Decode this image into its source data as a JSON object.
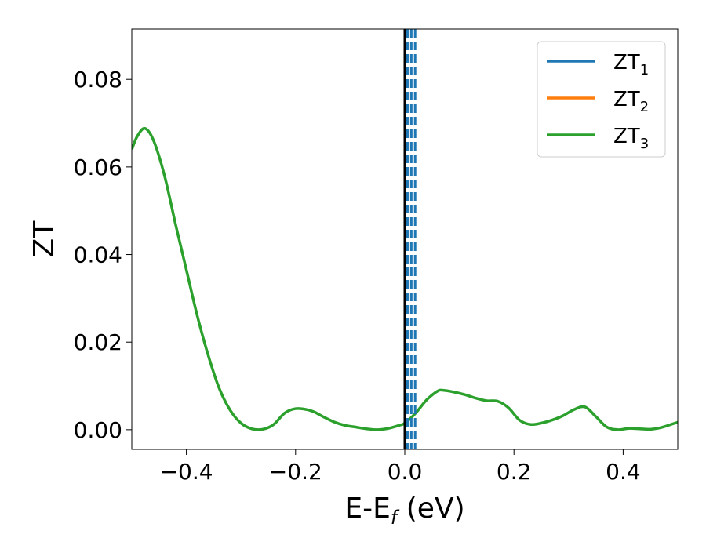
{
  "chart_data": {
    "type": "line",
    "title": "",
    "xlabel_main": "E-E",
    "xlabel_sub": "f",
    "xlabel_unit": " (eV)",
    "ylabel": "ZT",
    "xlim": [
      -0.5,
      0.5
    ],
    "ylim": [
      -0.0045,
      0.0915
    ],
    "xticks": [
      -0.4,
      -0.2,
      0.0,
      0.2,
      0.4
    ],
    "xtick_labels": [
      "−0.4",
      "−0.2",
      "0.0",
      "0.2",
      "0.4"
    ],
    "yticks": [
      0.0,
      0.02,
      0.04,
      0.06,
      0.08
    ],
    "ytick_labels": [
      "0.00",
      "0.02",
      "0.04",
      "0.06",
      "0.08"
    ],
    "grid": false,
    "legend_position": "top-right",
    "series": [
      {
        "name": "ZT",
        "sub": "1",
        "color": "#1f77b4",
        "x": [],
        "y": []
      },
      {
        "name": "ZT",
        "sub": "2",
        "color": "#ff7f0e",
        "x": [],
        "y": []
      },
      {
        "name": "ZT",
        "sub": "3",
        "color": "#2ca02c",
        "x": [
          -0.5,
          -0.49,
          -0.476,
          -0.46,
          -0.44,
          -0.42,
          -0.4,
          -0.38,
          -0.36,
          -0.34,
          -0.32,
          -0.3,
          -0.28,
          -0.26,
          -0.24,
          -0.22,
          -0.2,
          -0.18,
          -0.165,
          -0.15,
          -0.13,
          -0.11,
          -0.09,
          -0.07,
          -0.05,
          -0.03,
          -0.01,
          0.0,
          0.02,
          0.04,
          0.06,
          0.07,
          0.09,
          0.11,
          0.13,
          0.15,
          0.17,
          0.19,
          0.21,
          0.23,
          0.25,
          0.27,
          0.29,
          0.31,
          0.33,
          0.35,
          0.37,
          0.39,
          0.41,
          0.43,
          0.45,
          0.47,
          0.49,
          0.5
        ],
        "y": [
          0.064,
          0.067,
          0.0688,
          0.066,
          0.058,
          0.047,
          0.0365,
          0.026,
          0.017,
          0.0095,
          0.0045,
          0.0015,
          0.0002,
          0.0001,
          0.0012,
          0.0038,
          0.0048,
          0.0046,
          0.004,
          0.003,
          0.0018,
          0.001,
          0.0006,
          0.0002,
          0.0,
          0.0003,
          0.001,
          0.0015,
          0.0038,
          0.0068,
          0.0088,
          0.009,
          0.0086,
          0.008,
          0.0072,
          0.0066,
          0.0065,
          0.005,
          0.0022,
          0.0012,
          0.0015,
          0.0022,
          0.0032,
          0.0046,
          0.0052,
          0.003,
          0.0006,
          0.0,
          0.0003,
          0.0002,
          0.0001,
          0.0005,
          0.0013,
          0.0017
        ]
      }
    ],
    "vertical_lines": {
      "solid": {
        "x": 0.0,
        "color": "#000000"
      },
      "dashed": {
        "x": [
          0.005,
          0.012,
          0.019
        ],
        "color": "#1f77b4"
      }
    }
  }
}
